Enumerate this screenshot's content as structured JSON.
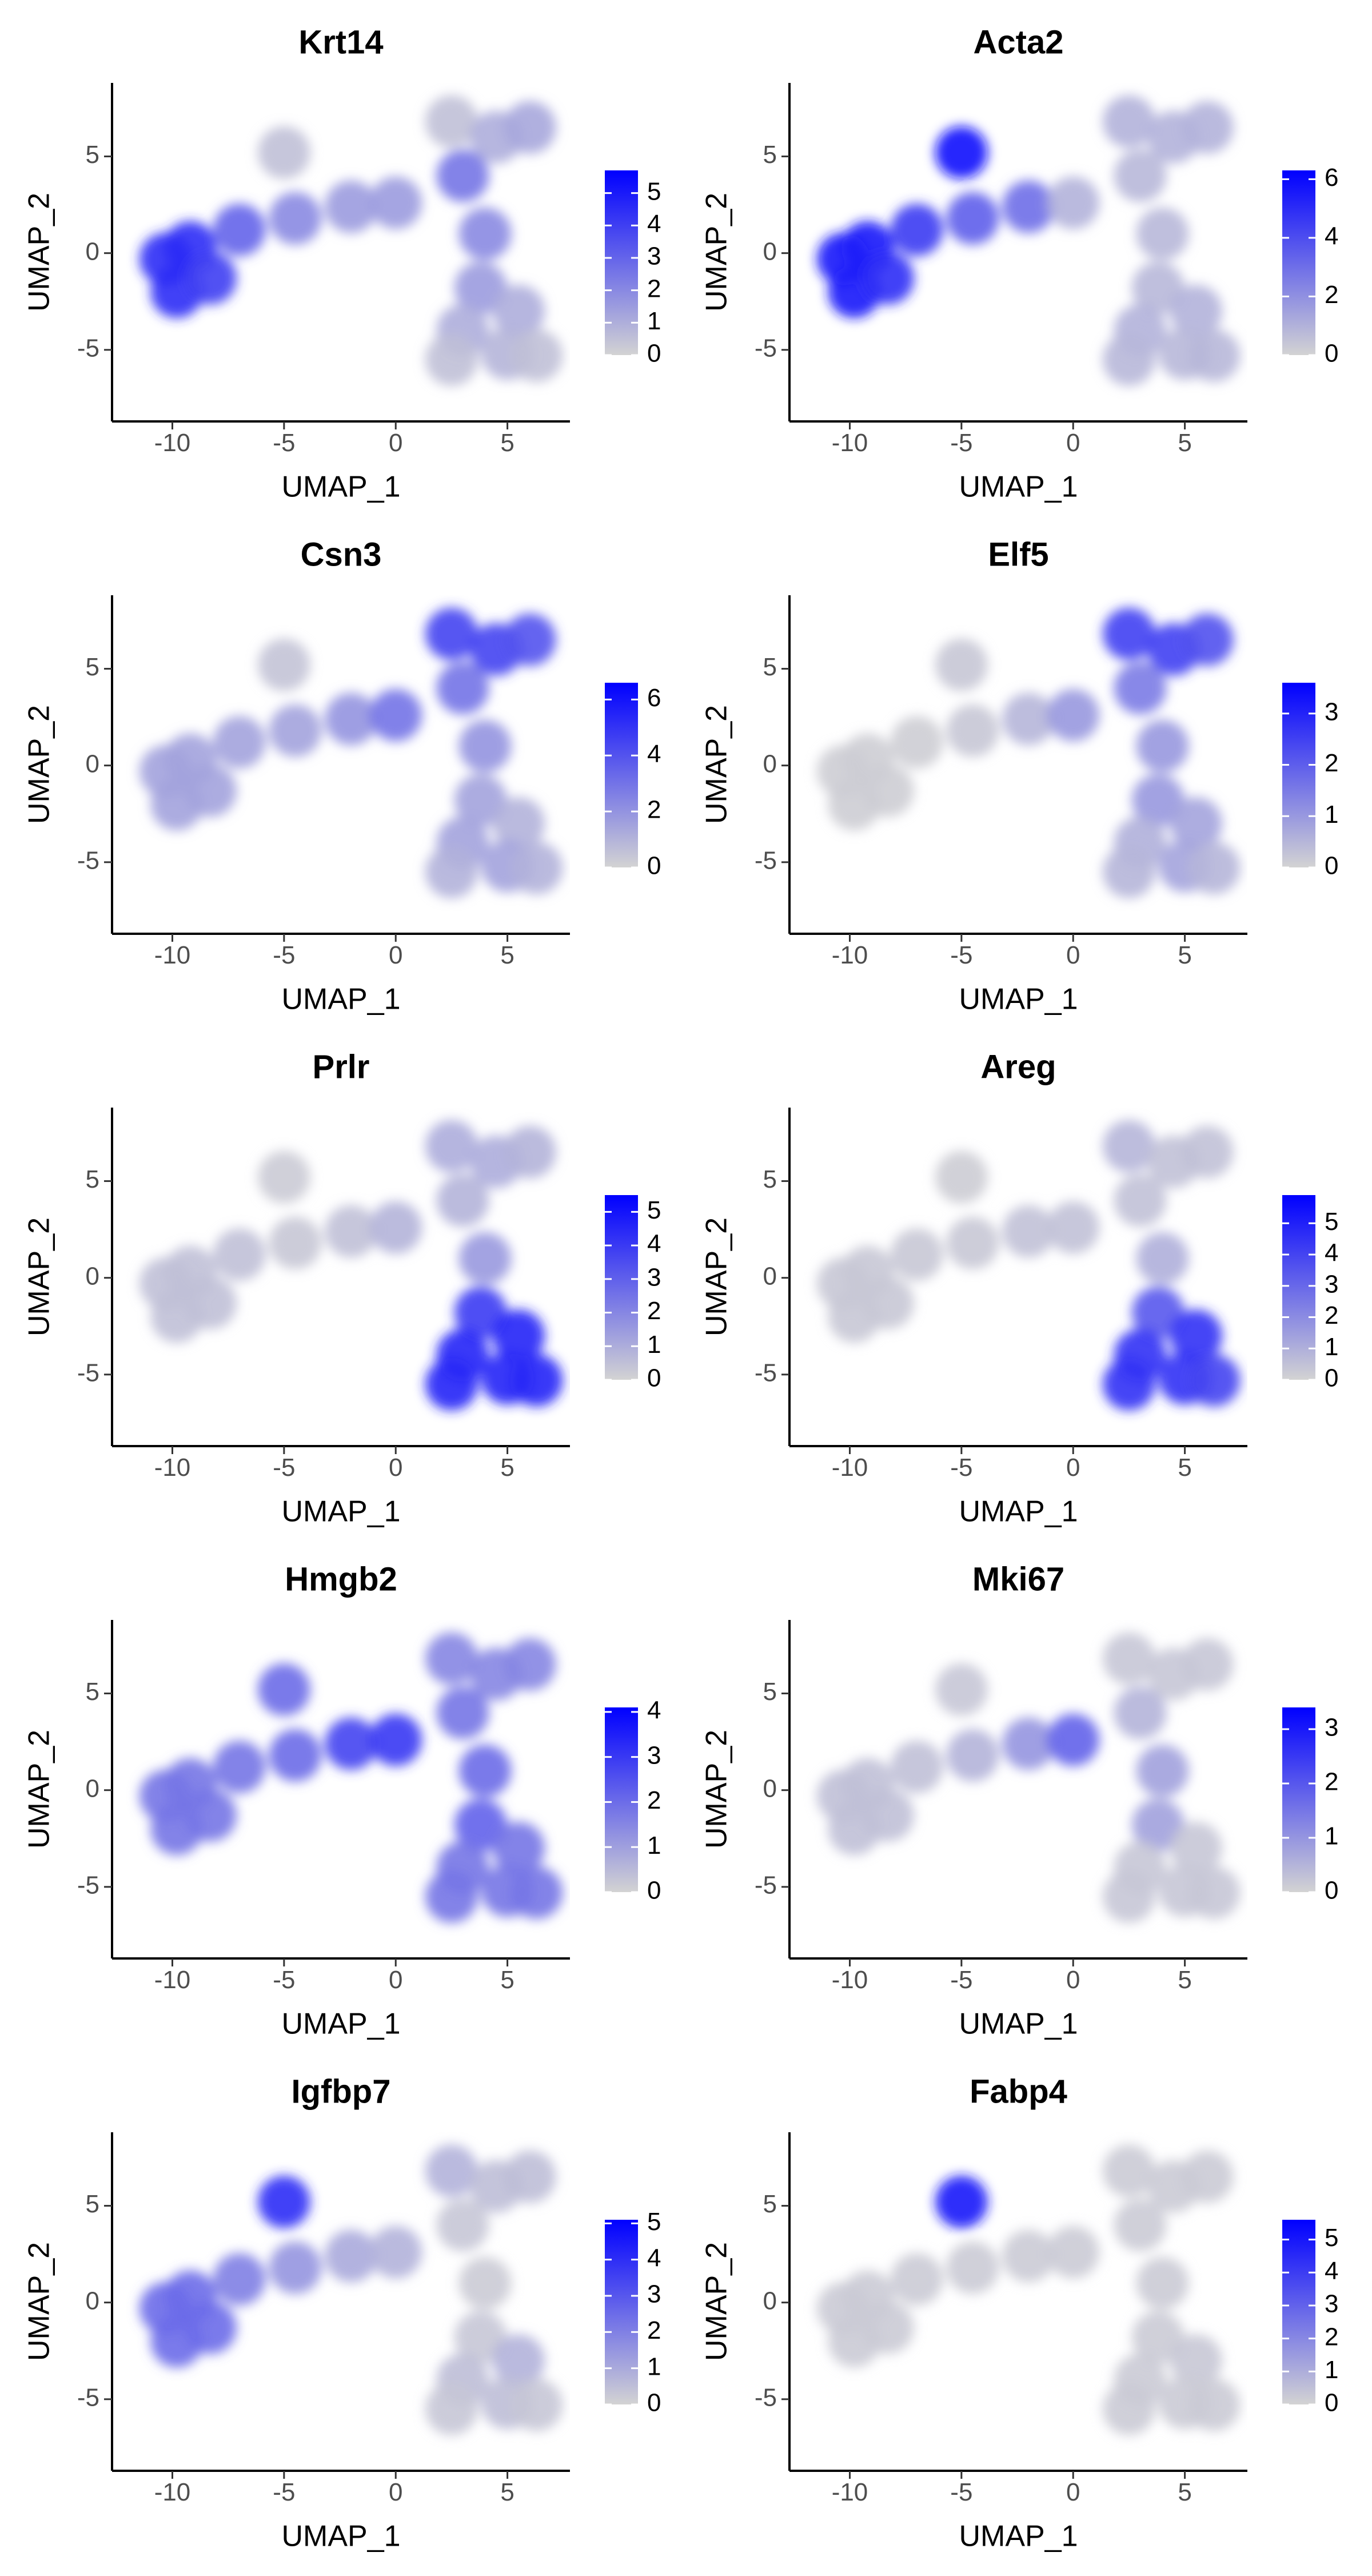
{
  "chart_data": [
    {
      "type": "scatter",
      "title": "Krt14",
      "xlabel": "UMAP_1",
      "ylabel": "UMAP_2",
      "xlim": [
        -12.7,
        7.8
      ],
      "ylim": [
        -8.7,
        8.8
      ],
      "xticks": [
        -10,
        -5,
        0,
        5
      ],
      "yticks": [
        -5,
        0,
        5
      ],
      "clim": [
        0,
        5.7
      ],
      "cticks": [
        0,
        1,
        2,
        3,
        4,
        5
      ],
      "x": [
        -10.3,
        -9.2,
        -9.8,
        -8.3,
        -7,
        -4.5,
        -2,
        0,
        -5,
        2.5,
        4.5,
        6,
        3,
        4,
        3.8,
        3,
        5.5,
        5,
        2.5,
        6.3
      ],
      "y": [
        -0.3,
        0.3,
        -2,
        -1.3,
        1.2,
        1.8,
        2.4,
        2.6,
        5.2,
        6.8,
        6,
        6.5,
        4,
        1,
        -1.8,
        -4,
        -3,
        -5.2,
        -5.5,
        -5.3
      ],
      "values": [
        4.5,
        4.5,
        4.5,
        4,
        3,
        2,
        1.5,
        1.5,
        0.5,
        0.5,
        1,
        1.2,
        2.5,
        2,
        1.5,
        1,
        1,
        0.8,
        0.5,
        0.5
      ]
    },
    {
      "type": "scatter",
      "title": "Acta2",
      "xlabel": "UMAP_1",
      "ylabel": "UMAP_2",
      "xlim": [
        -12.7,
        7.8
      ],
      "ylim": [
        -8.7,
        8.8
      ],
      "xticks": [
        -10,
        -5,
        0,
        5
      ],
      "yticks": [
        -5,
        0,
        5
      ],
      "clim": [
        0,
        6.3
      ],
      "cticks": [
        0,
        2,
        4,
        6
      ],
      "x": [
        -10.3,
        -9.2,
        -9.8,
        -8.3,
        -7,
        -4.5,
        -2,
        0,
        -5,
        2.5,
        4.5,
        6,
        3,
        4,
        3.8,
        3,
        5.5,
        5,
        2.5,
        6.3
      ],
      "y": [
        -0.3,
        0.3,
        -2,
        -1.3,
        1.2,
        1.8,
        2.4,
        2.6,
        5.2,
        6.8,
        6,
        6.5,
        4,
        1,
        -1.8,
        -4,
        -3,
        -5.2,
        -5.5,
        -5.3
      ],
      "values": [
        5.5,
        5.5,
        5.5,
        5,
        4.5,
        3.5,
        3,
        1,
        6,
        1,
        1,
        1,
        0.8,
        0.8,
        0.8,
        1,
        1,
        0.8,
        0.8,
        0.8
      ]
    },
    {
      "type": "scatter",
      "title": "Csn3",
      "xlabel": "UMAP_1",
      "ylabel": "UMAP_2",
      "xlim": [
        -12.7,
        7.8
      ],
      "ylim": [
        -8.7,
        8.8
      ],
      "xticks": [
        -10,
        -5,
        0,
        5
      ],
      "yticks": [
        -5,
        0,
        5
      ],
      "clim": [
        0,
        6.6
      ],
      "cticks": [
        0,
        2,
        4,
        6
      ],
      "x": [
        -10.3,
        -9.2,
        -9.8,
        -8.3,
        -7,
        -4.5,
        -2,
        0,
        -5,
        2.5,
        4.5,
        6,
        3,
        4,
        3.8,
        3,
        5.5,
        5,
        2.5,
        6.3
      ],
      "y": [
        -0.3,
        0.3,
        -2,
        -1.3,
        1.2,
        1.8,
        2.4,
        2.6,
        5.2,
        6.8,
        6,
        6.5,
        4,
        1,
        -1.8,
        -4,
        -3,
        -5.2,
        -5.5,
        -5.3
      ],
      "values": [
        1.5,
        1.5,
        1.5,
        1.5,
        1.5,
        1.5,
        2,
        3,
        0.5,
        4.5,
        4.5,
        4,
        3,
        2,
        1.5,
        1.5,
        1,
        1.5,
        1,
        1
      ]
    },
    {
      "type": "scatter",
      "title": "Elf5",
      "xlabel": "UMAP_1",
      "ylabel": "UMAP_2",
      "xlim": [
        -12.7,
        7.8
      ],
      "ylim": [
        -8.7,
        8.8
      ],
      "xticks": [
        -10,
        -5,
        0,
        5
      ],
      "yticks": [
        -5,
        0,
        5
      ],
      "clim": [
        0,
        3.6
      ],
      "cticks": [
        0,
        1,
        2,
        3
      ],
      "x": [
        -10.3,
        -9.2,
        -9.8,
        -8.3,
        -7,
        -4.5,
        -2,
        0,
        -5,
        2.5,
        4.5,
        6,
        3,
        4,
        3.8,
        3,
        5.5,
        5,
        2.5,
        6.3
      ],
      "y": [
        -0.3,
        0.3,
        -2,
        -1.3,
        1.2,
        1.8,
        2.4,
        2.6,
        5.2,
        6.8,
        6,
        6.5,
        4,
        1,
        -1.8,
        -4,
        -3,
        -5.2,
        -5.5,
        -5.3
      ],
      "values": [
        0.1,
        0.1,
        0.1,
        0.1,
        0.1,
        0.2,
        0.5,
        1,
        0.2,
        2.5,
        2.5,
        2.2,
        1.5,
        1,
        1,
        0.6,
        0.8,
        0.8,
        0.5,
        0.5
      ]
    },
    {
      "type": "scatter",
      "title": "Prlr",
      "xlabel": "UMAP_1",
      "ylabel": "UMAP_2",
      "xlim": [
        -12.7,
        7.8
      ],
      "ylim": [
        -8.7,
        8.8
      ],
      "xticks": [
        -10,
        -5,
        0,
        5
      ],
      "yticks": [
        -5,
        0,
        5
      ],
      "clim": [
        0,
        5.5
      ],
      "cticks": [
        0,
        1,
        2,
        3,
        4,
        5
      ],
      "x": [
        -10.3,
        -9.2,
        -9.8,
        -8.3,
        -7,
        -4.5,
        -2,
        0,
        -5,
        2.5,
        4.5,
        6,
        3,
        4,
        3.8,
        3,
        5.5,
        5,
        2.5,
        6.3
      ],
      "y": [
        -0.3,
        0.3,
        -2,
        -1.3,
        1.2,
        1.8,
        2.4,
        2.6,
        5.2,
        6.8,
        6,
        6.5,
        4,
        1,
        -1.8,
        -4,
        -3,
        -5.2,
        -5.5,
        -5.3
      ],
      "values": [
        0.5,
        0.5,
        0.5,
        0.5,
        0.5,
        0.3,
        0.5,
        0.8,
        0.2,
        1,
        1,
        0.8,
        0.8,
        1.5,
        4,
        4.5,
        4.5,
        4.5,
        4.5,
        4.5
      ]
    },
    {
      "type": "scatter",
      "title": "Areg",
      "xlabel": "UMAP_1",
      "ylabel": "UMAP_2",
      "xlim": [
        -12.7,
        7.8
      ],
      "ylim": [
        -8.7,
        8.8
      ],
      "xticks": [
        -10,
        -5,
        0,
        5
      ],
      "yticks": [
        -5,
        0,
        5
      ],
      "clim": [
        0,
        5.9
      ],
      "cticks": [
        0,
        1,
        2,
        3,
        4,
        5
      ],
      "x": [
        -10.3,
        -9.2,
        -9.8,
        -8.3,
        -7,
        -4.5,
        -2,
        0,
        -5,
        2.5,
        4.5,
        6,
        3,
        4,
        3.8,
        3,
        5.5,
        5,
        2.5,
        6.3
      ],
      "y": [
        -0.3,
        0.3,
        -2,
        -1.3,
        1.2,
        1.8,
        2.4,
        2.6,
        5.2,
        6.8,
        6,
        6.5,
        4,
        1,
        -1.8,
        -4,
        -3,
        -5.2,
        -5.5,
        -5.3
      ],
      "values": [
        0.3,
        0.3,
        0.3,
        0.3,
        0.3,
        0.3,
        0.5,
        0.5,
        0.2,
        0.8,
        0.5,
        0.5,
        0.5,
        1,
        3.5,
        4.5,
        4.5,
        4.5,
        4.5,
        4
      ]
    },
    {
      "type": "scatter",
      "title": "Hmgb2",
      "xlabel": "UMAP_1",
      "ylabel": "UMAP_2",
      "xlim": [
        -12.7,
        7.8
      ],
      "ylim": [
        -8.7,
        8.8
      ],
      "xticks": [
        -10,
        -5,
        0,
        5
      ],
      "yticks": [
        -5,
        0,
        5
      ],
      "clim": [
        0,
        4.1
      ],
      "cticks": [
        0,
        1,
        2,
        3,
        4
      ],
      "x": [
        -10.3,
        -9.2,
        -9.8,
        -8.3,
        -7,
        -4.5,
        -2,
        0,
        -5,
        2.5,
        4.5,
        6,
        3,
        4,
        3.8,
        3,
        5.5,
        5,
        2.5,
        6.3
      ],
      "y": [
        -0.3,
        0.3,
        -2,
        -1.3,
        1.2,
        1.8,
        2.4,
        2.6,
        5.2,
        6.8,
        6,
        6.5,
        4,
        1,
        -1.8,
        -4,
        -3,
        -5.2,
        -5.5,
        -5.3
      ],
      "values": [
        1.8,
        1.8,
        1.8,
        1.8,
        1.8,
        2,
        2.8,
        3,
        2,
        1.5,
        1.5,
        1.5,
        1.8,
        2,
        2.2,
        1.8,
        1.8,
        1.8,
        1.8,
        1.8
      ]
    },
    {
      "type": "scatter",
      "title": "Mki67",
      "xlabel": "UMAP_1",
      "ylabel": "UMAP_2",
      "xlim": [
        -12.7,
        7.8
      ],
      "ylim": [
        -8.7,
        8.8
      ],
      "xticks": [
        -10,
        -5,
        0,
        5
      ],
      "yticks": [
        -5,
        0,
        5
      ],
      "clim": [
        0,
        3.4
      ],
      "cticks": [
        0,
        1,
        2,
        3
      ],
      "x": [
        -10.3,
        -9.2,
        -9.8,
        -8.3,
        -7,
        -4.5,
        -2,
        0,
        -5,
        2.5,
        4.5,
        6,
        3,
        4,
        3.8,
        3,
        5.5,
        5,
        2.5,
        6.3
      ],
      "y": [
        -0.3,
        0.3,
        -2,
        -1.3,
        1.2,
        1.8,
        2.4,
        2.6,
        5.2,
        6.8,
        6,
        6.5,
        4,
        1,
        -1.8,
        -4,
        -3,
        -5.2,
        -5.5,
        -5.3
      ],
      "values": [
        0.3,
        0.3,
        0.3,
        0.3,
        0.3,
        0.5,
        1,
        1.8,
        0.2,
        0.2,
        0.2,
        0.2,
        0.5,
        0.8,
        0.8,
        0.2,
        0.2,
        0.2,
        0.2,
        0.2
      ]
    },
    {
      "type": "scatter",
      "title": "Igfbp7",
      "xlabel": "UMAP_1",
      "ylabel": "UMAP_2",
      "xlim": [
        -12.7,
        7.8
      ],
      "ylim": [
        -8.7,
        8.8
      ],
      "xticks": [
        -10,
        -5,
        0,
        5
      ],
      "yticks": [
        -5,
        0,
        5
      ],
      "clim": [
        0,
        5.1
      ],
      "cticks": [
        0,
        1,
        2,
        3,
        4,
        5
      ],
      "x": [
        -10.3,
        -9.2,
        -9.8,
        -8.3,
        -7,
        -4.5,
        -2,
        0,
        -5,
        2.5,
        4.5,
        6,
        3,
        4,
        3.8,
        3,
        5.5,
        5,
        2.5,
        6.3
      ],
      "y": [
        -0.3,
        0.3,
        -2,
        -1.3,
        1.2,
        1.8,
        2.4,
        2.6,
        5.2,
        6.8,
        6,
        6.5,
        4,
        1,
        -1.8,
        -4,
        -3,
        -5.2,
        -5.5,
        -5.3
      ],
      "values": [
        2.5,
        2.5,
        2.5,
        2.5,
        2,
        1.5,
        1,
        0.8,
        4,
        0.8,
        0.5,
        0.5,
        0.3,
        0.2,
        0.3,
        0.5,
        0.8,
        0.5,
        0.3,
        0.3
      ]
    },
    {
      "type": "scatter",
      "title": "Fabp4",
      "xlabel": "UMAP_1",
      "ylabel": "UMAP_2",
      "xlim": [
        -12.7,
        7.8
      ],
      "ylim": [
        -8.7,
        8.8
      ],
      "xticks": [
        -10,
        -5,
        0,
        5
      ],
      "yticks": [
        -5,
        0,
        5
      ],
      "clim": [
        0,
        5.6
      ],
      "cticks": [
        0,
        1,
        2,
        3,
        4,
        5
      ],
      "x": [
        -10.3,
        -9.2,
        -9.8,
        -8.3,
        -7,
        -4.5,
        -2,
        0,
        -5,
        2.5,
        4.5,
        6,
        3,
        4,
        3.8,
        3,
        5.5,
        5,
        2.5,
        6.3
      ],
      "y": [
        -0.3,
        0.3,
        -2,
        -1.3,
        1.2,
        1.8,
        2.4,
        2.6,
        5.2,
        6.8,
        6,
        6.5,
        4,
        1,
        -1.8,
        -4,
        -3,
        -5.2,
        -5.5,
        -5.3
      ],
      "values": [
        0.2,
        0.2,
        0.2,
        0.2,
        0.2,
        0.2,
        0.2,
        0.2,
        5,
        0.2,
        0.2,
        0.2,
        0.2,
        0.2,
        0.2,
        0.2,
        0.3,
        0.2,
        0.2,
        0.2
      ]
    }
  ]
}
